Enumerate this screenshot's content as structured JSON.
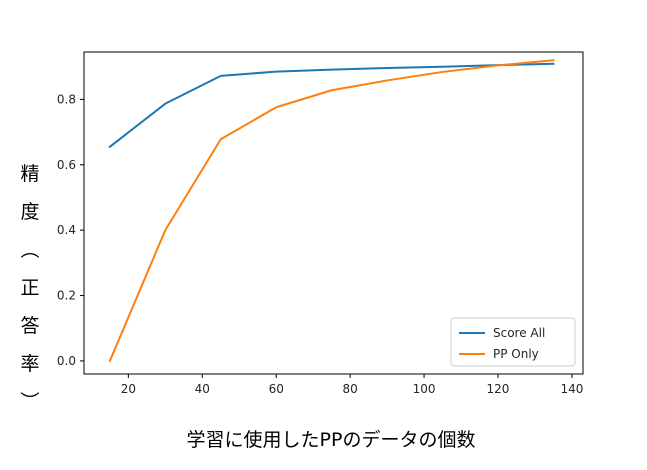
{
  "chart_data": {
    "type": "line",
    "xlabel": "学習に使用したPPのデータの個数",
    "ylabel_chars": [
      "精",
      "度",
      "︵",
      "正",
      "答",
      "率",
      "︶"
    ],
    "xlim": [
      8,
      143
    ],
    "ylim": [
      -0.04,
      0.945
    ],
    "xticks": [
      20,
      40,
      60,
      80,
      100,
      120,
      140
    ],
    "yticks": [
      0.0,
      0.2,
      0.4,
      0.6,
      0.8
    ],
    "ytick_labels": [
      "0.0",
      "0.2",
      "0.4",
      "0.6",
      "0.8"
    ],
    "grid": false,
    "legend_position": "lower-right",
    "series": [
      {
        "name": "Score All",
        "color": "#1f77b4",
        "x": [
          15,
          30,
          45,
          60,
          75,
          90,
          105,
          120,
          135
        ],
        "y": [
          0.655,
          0.787,
          0.872,
          0.885,
          0.891,
          0.896,
          0.9,
          0.905,
          0.909
        ]
      },
      {
        "name": "PP Only",
        "color": "#ff7f0e",
        "x": [
          15,
          30,
          45,
          60,
          75,
          90,
          105,
          120,
          135
        ],
        "y": [
          0.0,
          0.4,
          0.678,
          0.776,
          0.828,
          0.858,
          0.884,
          0.904,
          0.92
        ]
      }
    ]
  }
}
